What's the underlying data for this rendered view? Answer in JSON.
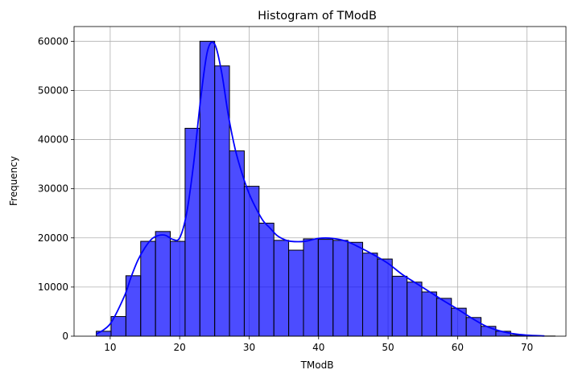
{
  "chart_data": {
    "type": "bar",
    "title": "Histogram of TModB",
    "xlabel": "TModB",
    "ylabel": "Frequency",
    "xlim": [
      4.8,
      75.6
    ],
    "ylim": [
      0,
      63000
    ],
    "grid": true,
    "xticks": [
      10,
      20,
      30,
      40,
      50,
      60,
      70
    ],
    "yticks": [
      0,
      10000,
      20000,
      30000,
      40000,
      50000,
      60000
    ],
    "bin_edges": [
      8.0,
      10.13,
      12.26,
      14.39,
      16.52,
      18.65,
      20.78,
      22.91,
      25.04,
      27.17,
      29.3,
      31.43,
      33.56,
      35.69,
      37.82,
      39.95,
      42.08,
      44.21,
      46.34,
      48.47,
      50.6,
      52.73,
      54.86,
      56.99,
      59.12,
      61.25,
      63.38,
      65.51,
      67.64,
      69.77,
      71.9,
      74.03
    ],
    "values": [
      1000,
      4000,
      12300,
      19300,
      21300,
      19300,
      42300,
      60000,
      55000,
      37700,
      30500,
      23000,
      19500,
      17500,
      19800,
      19700,
      19500,
      19100,
      16900,
      15700,
      12200,
      11000,
      9000,
      7700,
      5700,
      3800,
      2000,
      1000,
      200,
      100,
      30
    ],
    "kde": {
      "x": [
        8,
        10,
        12,
        13,
        14,
        15,
        16,
        17,
        18,
        19,
        20,
        21,
        22,
        23,
        24,
        25,
        26,
        27,
        28,
        29,
        30,
        31,
        32,
        33,
        34,
        35,
        36,
        38,
        40,
        42,
        44,
        46,
        48,
        50,
        52,
        54,
        56,
        58,
        60,
        62,
        64,
        66,
        68,
        70,
        72.5
      ],
      "y": [
        400,
        2500,
        8000,
        12000,
        15500,
        18000,
        19800,
        20500,
        20500,
        19700,
        20000,
        25000,
        35000,
        48000,
        58000,
        59500,
        54000,
        45000,
        38000,
        33000,
        29000,
        26000,
        23500,
        22000,
        20500,
        19700,
        19300,
        19300,
        19900,
        19900,
        19300,
        18000,
        16500,
        14800,
        12600,
        10800,
        9000,
        7200,
        5500,
        3700,
        2100,
        1100,
        500,
        200,
        50
      ]
    },
    "colors": {
      "bar": "#0000ff",
      "kde": "#0000ff",
      "grid": "#b0b0b0"
    }
  }
}
